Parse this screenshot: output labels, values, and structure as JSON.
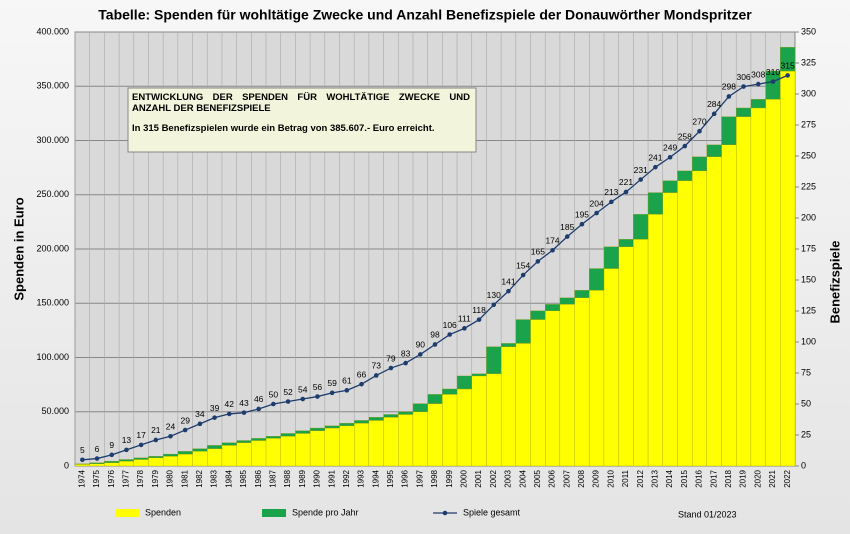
{
  "chart_data": {
    "type": "bar",
    "title": "Tabelle: Spenden für wohltätige Zwecke und Anzahl Benefizspiele der Donauwörther Mondspritzer",
    "annotations": [
      "ENTWICKLUNG DER SPENDEN FÜR WOHLTÄTIGE ZWECKE UND ANZAHL DER BENEFIZSPIELE",
      "In 315 Benefizspielen wurde ein Betrag von 385.607.- Euro erreicht."
    ],
    "footnote": "Stand 01/2023",
    "ylabel": "Spenden in Euro",
    "y2label": "Benefizspiele",
    "stacked": true,
    "grid": true,
    "categories": [
      "1974",
      "1975",
      "1976",
      "1977",
      "1978",
      "1979",
      "1980",
      "1981",
      "1982",
      "1983",
      "1984",
      "1985",
      "1986",
      "1987",
      "1988",
      "1989",
      "1990",
      "1991",
      "1992",
      "1993",
      "1994",
      "1995",
      "1996",
      "1997",
      "1998",
      "1999",
      "2000",
      "2001",
      "2002",
      "2003",
      "2004",
      "2005",
      "2006",
      "2007",
      "2008",
      "2009",
      "2010",
      "2011",
      "2012",
      "2013",
      "2014",
      "2015",
      "2016",
      "2017",
      "2018",
      "2019",
      "2020",
      "2021",
      "2022"
    ],
    "series": [
      {
        "name": "Spenden",
        "color": "#ffff00",
        "values": [
          1500,
          2000,
          3000,
          4500,
          6000,
          7500,
          9000,
          11000,
          13500,
          16000,
          19000,
          21500,
          23500,
          25500,
          27500,
          30000,
          32500,
          35000,
          37000,
          39500,
          42000,
          45000,
          47500,
          50000,
          57500,
          66000,
          71000,
          83000,
          85000,
          110000,
          113000,
          135000,
          143000,
          149000,
          155000,
          162000,
          182000,
          202000,
          209000,
          232000,
          252000,
          263000,
          272000,
          285000,
          296000,
          322000,
          330000,
          338000,
          364000
        ]
      },
      {
        "name": "Spende pro Jahr",
        "color": "#1aa34a",
        "values": [
          500,
          1000,
          1500,
          1500,
          1500,
          1500,
          2000,
          2500,
          2500,
          3000,
          2500,
          2000,
          2000,
          2000,
          2500,
          2500,
          2500,
          2000,
          2500,
          2500,
          3000,
          2500,
          2500,
          7500,
          8500,
          5000,
          12000,
          2000,
          25000,
          3000,
          22000,
          8000,
          6000,
          6000,
          7000,
          20000,
          20000,
          7000,
          23000,
          20000,
          11000,
          9000,
          13000,
          11000,
          26000,
          8000,
          8000,
          26000,
          22000
        ]
      },
      {
        "name": "Spiele gesamt",
        "type": "line",
        "axis": "y2",
        "color": "#1f3c6e",
        "values": [
          5,
          6,
          9,
          13,
          17,
          21,
          24,
          29,
          34,
          39,
          42,
          43,
          46,
          50,
          52,
          54,
          56,
          59,
          61,
          66,
          73,
          79,
          83,
          90,
          98,
          106,
          111,
          118,
          130,
          141,
          154,
          165,
          174,
          185,
          195,
          204,
          213,
          221,
          231,
          241,
          249,
          258,
          270,
          284,
          298,
          306,
          308,
          310,
          315
        ]
      }
    ],
    "ylim": [
      0,
      400000
    ],
    "yticks": [
      {
        "value": 0,
        "label": "0"
      },
      {
        "value": 50000,
        "label": "50.000"
      },
      {
        "value": 100000,
        "label": "100.000"
      },
      {
        "value": 150000,
        "label": "150.000"
      },
      {
        "value": 200000,
        "label": "200.000"
      },
      {
        "value": 250000,
        "label": "250.000"
      },
      {
        "value": 300000,
        "label": "300.000"
      },
      {
        "value": 350000,
        "label": "350.000"
      },
      {
        "value": 400000,
        "label": "400.000"
      }
    ],
    "y2lim": [
      0,
      350
    ],
    "y2ticks": [
      0,
      25,
      50,
      75,
      100,
      125,
      150,
      175,
      200,
      225,
      250,
      275,
      300,
      325,
      350
    ]
  }
}
